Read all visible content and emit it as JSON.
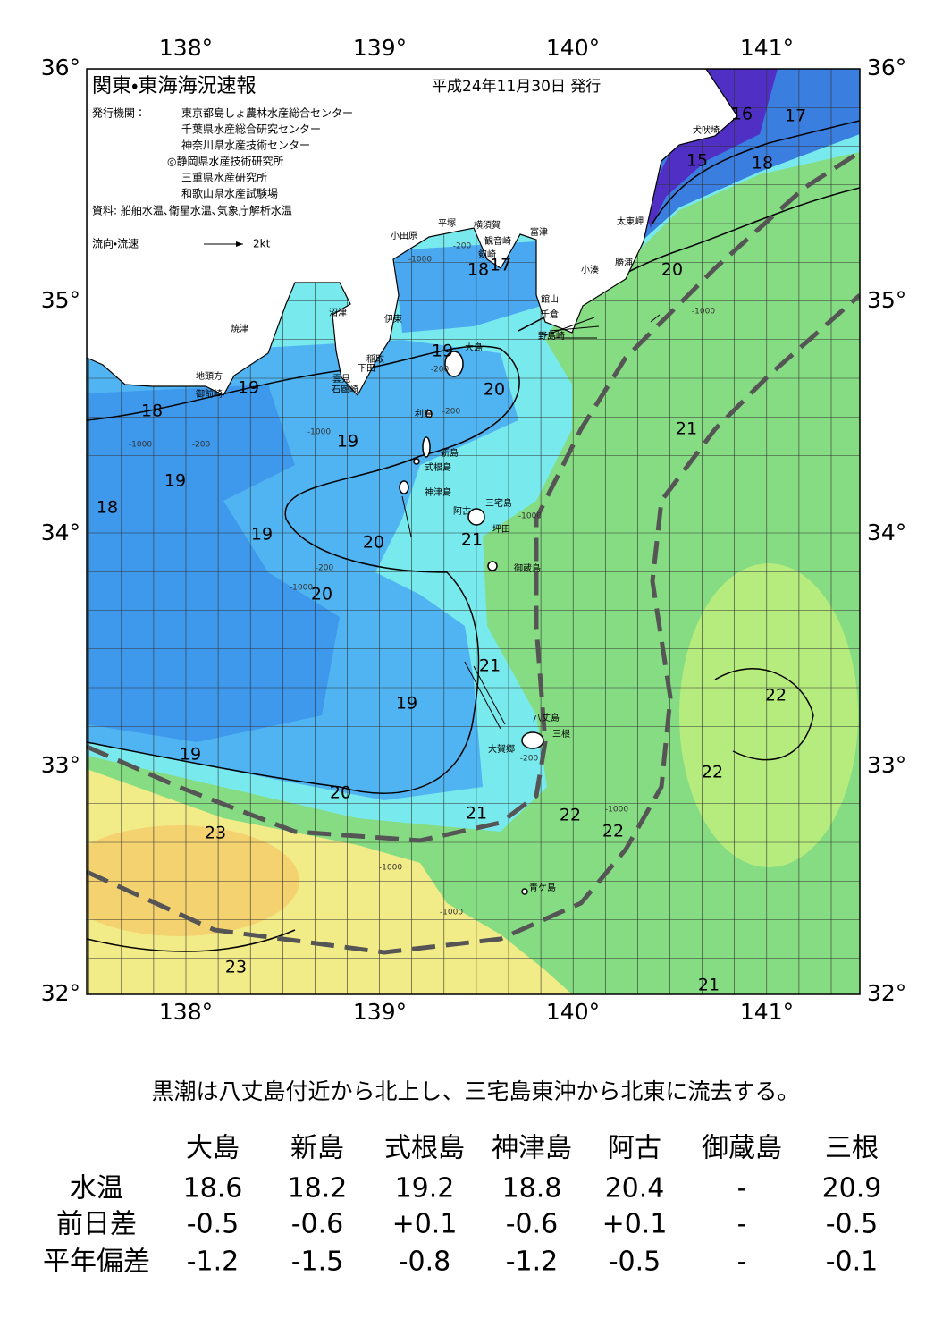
{
  "header": {
    "title": "関東・東海海況速報",
    "date": "平成24年11月30日 発行",
    "issuer_label": "発行機関：",
    "issuers": [
      "東京都島しょ農林水産総合センター",
      "千葉県水産総合研究センター",
      "神奈川県水産技術センター",
      "◎静岡県水産技術研究所",
      "三重県水産研究所",
      "和歌山県水産試験場"
    ],
    "sources": "資料: 船舶水温､衛星水温､気象庁解析水温",
    "current_legend": "流向・流速",
    "current_scale": "2kt"
  },
  "map": {
    "lon_labels": [
      "138°",
      "139°",
      "140°",
      "141°"
    ],
    "lat_labels": [
      "36°",
      "35°",
      "34°",
      "33°",
      "32°"
    ],
    "places": [
      "犬吠埼",
      "太東岬",
      "勝浦",
      "小湊",
      "館山",
      "千倉",
      "野島崎",
      "富津",
      "横須賀",
      "観音崎",
      "剱崎",
      "平塚",
      "小田原",
      "沼津",
      "伊東",
      "稲取",
      "下田",
      "雲見",
      "石廊崎",
      "焼津",
      "地頭方",
      "御前崎",
      "大島",
      "利島",
      "新島",
      "式根島",
      "神津島",
      "三宅島",
      "阿古",
      "坪田",
      "御蔵島",
      "八丈島",
      "三根",
      "大賀郷",
      "青ケ島"
    ],
    "isotherm_labels": [
      "16",
      "17",
      "15",
      "18",
      "20",
      "18",
      "17",
      "19",
      "20",
      "19",
      "18",
      "19",
      "21",
      "19",
      "18",
      "19",
      "20",
      "21",
      "20",
      "21",
      "22",
      "19",
      "19",
      "22",
      "20",
      "21",
      "22",
      "22",
      "23",
      "23",
      "21"
    ],
    "depth_labels": [
      "-200",
      "-1000",
      "-200",
      "-1000",
      "-200",
      "-1000",
      "-200",
      "-1000",
      "-1000",
      "-1000",
      "-1000",
      "-1000",
      "-200",
      "-1000",
      "-200"
    ]
  },
  "summary": "黒潮は八丈島付近から北上し、三宅島東沖から北東に流去する。",
  "table": {
    "columns": [
      "大島",
      "新島",
      "式根島",
      "神津島",
      "阿古",
      "御蔵島",
      "三根"
    ],
    "rows": [
      {
        "label": "水温",
        "cells": [
          "18.6",
          "18.2",
          "19.2",
          "18.8",
          "20.4",
          "-",
          "20.9"
        ]
      },
      {
        "label": "前日差",
        "cells": [
          "-0.5",
          "-0.6",
          "+0.1",
          "-0.6",
          "+0.1",
          "-",
          "-0.5"
        ]
      },
      {
        "label": "平年偏差",
        "cells": [
          "-1.2",
          "-1.5",
          "-0.8",
          "-1.2",
          "-0.5",
          "-",
          "-0.1"
        ]
      }
    ]
  }
}
